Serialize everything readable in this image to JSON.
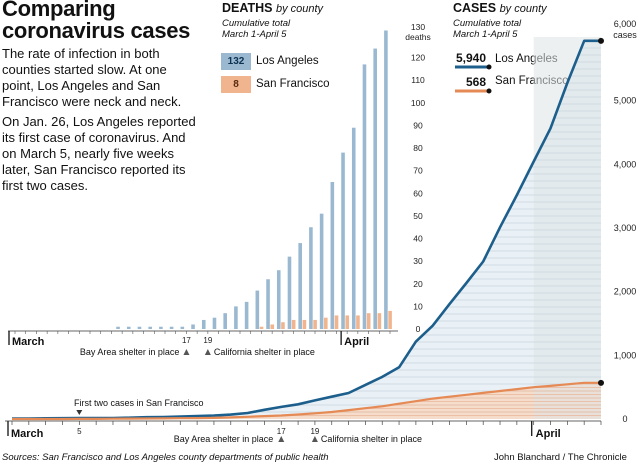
{
  "title": "Comparing coronavirus cases",
  "intro": [
    "The rate of infection in both counties started slow. At one point, Los Angeles and San Francisco were neck and neck.",
    "On Jan. 26, Los Angeles reported its first case of coronavirus. And on March 5, nearly five weeks later, San Francisco reported its first two cases."
  ],
  "colors": {
    "la": "#1d5f8c",
    "la_bar": "#9ab9d1",
    "la_fill": "#cfdfeb",
    "sf": "#e68a55",
    "sf_bar": "#f0b58f",
    "sf_fill": "#f6d9c6",
    "grid": "#c8d3dc"
  },
  "chart_data": [
    {
      "type": "bar",
      "title": "DEATHS",
      "title_suffix": "by county",
      "subtitle": "Cumulative total",
      "date_range": "March 1-April 5",
      "ylim": [
        0,
        130
      ],
      "yticks": [
        0,
        10,
        20,
        30,
        40,
        50,
        60,
        70,
        80,
        90,
        100,
        110,
        120,
        130
      ],
      "y_unit": "deaths",
      "x_labels": [
        {
          "day": 1,
          "label": "March"
        },
        {
          "day": 32,
          "label": "April"
        }
      ],
      "annotations": [
        {
          "day": 17,
          "label": "17",
          "text": "Bay Area shelter in place"
        },
        {
          "day": 19,
          "label": "19",
          "text": "California shelter in place"
        }
      ],
      "legend": [
        {
          "name": "Los Angeles",
          "value": "132"
        },
        {
          "name": "San Francisco",
          "value": "8"
        }
      ],
      "days": [
        1,
        2,
        3,
        4,
        5,
        6,
        7,
        8,
        9,
        10,
        11,
        12,
        13,
        14,
        15,
        16,
        17,
        18,
        19,
        20,
        21,
        22,
        23,
        24,
        25,
        26,
        27,
        28,
        29,
        30,
        31,
        32,
        33,
        34,
        35,
        36
      ],
      "series": [
        {
          "name": "Los Angeles",
          "values": [
            0,
            0,
            0,
            0,
            0,
            0,
            0,
            0,
            0,
            0,
            1,
            1,
            1,
            1,
            1,
            1,
            1,
            2,
            4,
            5,
            7,
            10,
            12,
            17,
            22,
            26,
            32,
            38,
            45,
            51,
            65,
            78,
            89,
            117,
            124,
            132
          ]
        },
        {
          "name": "San Francisco",
          "values": [
            0,
            0,
            0,
            0,
            0,
            0,
            0,
            0,
            0,
            0,
            0,
            0,
            0,
            0,
            0,
            0,
            0,
            0,
            0,
            0,
            0,
            0,
            0,
            1,
            2,
            3,
            4,
            4,
            4,
            5,
            6,
            6,
            6,
            7,
            7,
            8
          ]
        }
      ]
    },
    {
      "type": "area",
      "title": "CASES",
      "title_suffix": "by county",
      "subtitle": "Cumulative total",
      "date_range": "March 1-April 5",
      "ylim": [
        0,
        6000
      ],
      "yticks": [
        0,
        1000,
        2000,
        3000,
        4000,
        5000,
        6000
      ],
      "ytick_labels": [
        "0",
        "1,000",
        "2,000",
        "3,000",
        "4,000",
        "5,000",
        "6,000"
      ],
      "y_unit": "cases",
      "x_labels": [
        {
          "day": 1,
          "label": "March"
        },
        {
          "day": 5,
          "label": "5"
        },
        {
          "day": 32,
          "label": "April"
        }
      ],
      "annotations": [
        {
          "day": 5,
          "label": "5",
          "text": "First two cases in San Francisco"
        },
        {
          "day": 17,
          "label": "17",
          "text": "Bay Area shelter in place"
        },
        {
          "day": 19,
          "label": "19",
          "text": "California shelter in place"
        }
      ],
      "legend": [
        {
          "name": "Los Angeles",
          "value": "5,940"
        },
        {
          "name": "San Francisco",
          "value": "568"
        }
      ],
      "days": [
        1,
        2,
        3,
        4,
        5,
        6,
        7,
        8,
        9,
        10,
        11,
        12,
        13,
        14,
        15,
        16,
        17,
        18,
        19,
        20,
        21,
        22,
        23,
        24,
        25,
        26,
        27,
        28,
        29,
        30,
        31,
        32,
        33,
        34,
        35,
        36
      ],
      "series": [
        {
          "name": "Los Angeles",
          "values": [
            7,
            7,
            11,
            13,
            14,
            14,
            15,
            20,
            28,
            32,
            40,
            46,
            53,
            69,
            95,
            144,
            190,
            231,
            292,
            351,
            409,
            536,
            662,
            812,
            1216,
            1465,
            1804,
            2136,
            2474,
            3011,
            3518,
            4045,
            4566,
            5277,
            5940,
            5940
          ]
        },
        {
          "name": "San Francisco",
          "values": [
            0,
            0,
            0,
            0,
            2,
            2,
            4,
            6,
            8,
            10,
            12,
            14,
            17,
            25,
            35,
            45,
            55,
            70,
            90,
            110,
            140,
            170,
            200,
            240,
            280,
            320,
            350,
            380,
            410,
            440,
            470,
            500,
            520,
            545,
            568,
            568
          ]
        }
      ]
    }
  ],
  "source": "Sources: San Francisco and Los Angeles county departments of public health",
  "credit": "John Blanchard / The Chronicle"
}
